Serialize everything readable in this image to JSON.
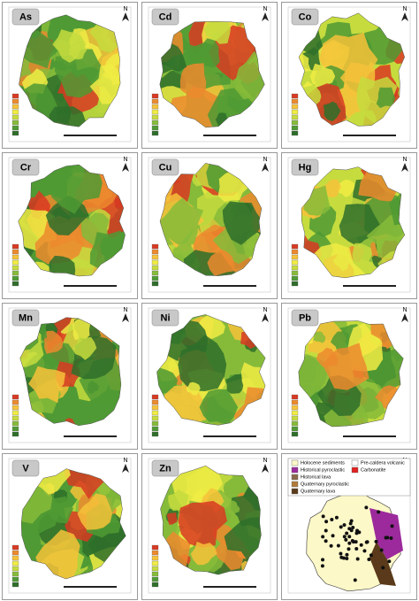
{
  "panels": [
    {
      "label": "As"
    },
    {
      "label": "Cd"
    },
    {
      "label": "Co"
    },
    {
      "label": "Cr"
    },
    {
      "label": "Cu"
    },
    {
      "label": "Hg"
    },
    {
      "label": "Mn"
    },
    {
      "label": "Ni"
    },
    {
      "label": "Pb"
    },
    {
      "label": "V"
    },
    {
      "label": "Zn"
    }
  ],
  "north_label": "N",
  "geology_legend": {
    "items": [
      {
        "label": "Holocene sediments",
        "color": "#fdf8c8"
      },
      {
        "label": "Historical pyroclastic",
        "color": "#9c2a9c"
      },
      {
        "label": "Historical lava",
        "color": "#8a6a4a"
      },
      {
        "label": "Quaternary pyroclastic",
        "color": "#b07a3a"
      },
      {
        "label": "Quaternary lava",
        "color": "#5a3a1a"
      },
      {
        "label": "Pre-caldera volcanic",
        "color": "#ffffff"
      },
      {
        "label": "Carbonatite",
        "color": "#e02020"
      }
    ]
  }
}
